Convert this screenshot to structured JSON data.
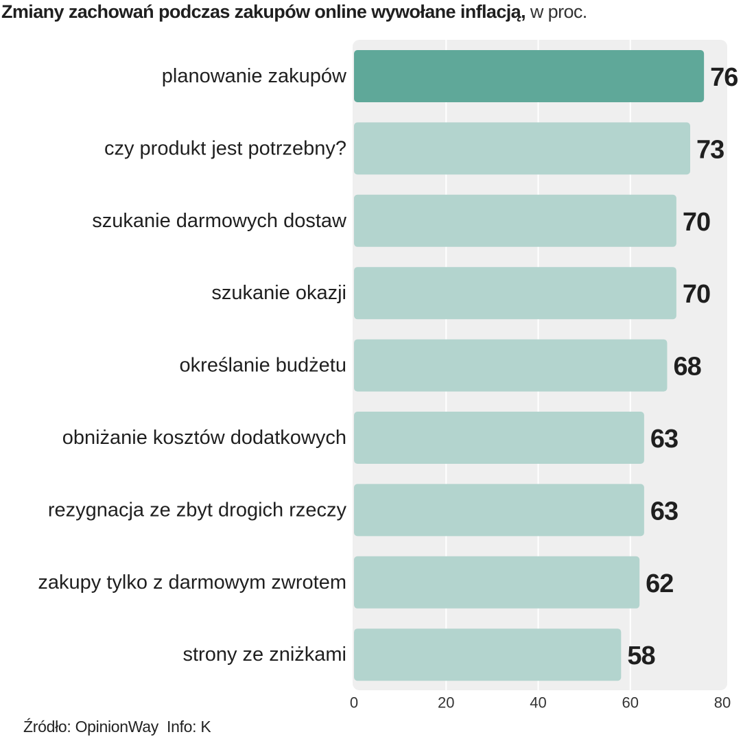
{
  "header": {
    "title_bold": "Zmiany zachowań podczas zakupów online wywołane inflacją,",
    "title_unit": " w proc."
  },
  "footer": {
    "source": "Źródło: OpinionWay",
    "info": "Info: K"
  },
  "colors": {
    "highlight_bar": "#5fa899",
    "bar": "#b3d4ce",
    "plot_background": "#efefef",
    "grid": "#ffffff"
  },
  "chart_data": {
    "type": "bar",
    "orientation": "horizontal",
    "title": "Zmiany zachowań podczas zakupów online wywołane inflacją, w proc.",
    "categories": [
      "planowanie zakupów",
      "czy produkt jest potrzebny?",
      "szukanie darmowych dostaw",
      "szukanie okazji",
      "określanie budżetu",
      "obniżanie kosztów dodatkowych",
      "rezygnacja ze zbyt drogich rzeczy",
      "zakupy tylko z darmowym zwrotem",
      "strony ze zniżkami"
    ],
    "values": [
      76,
      73,
      70,
      70,
      68,
      63,
      63,
      62,
      58
    ],
    "highlight_index": 0,
    "xlim": [
      0,
      80
    ],
    "xticks": [
      0,
      20,
      40,
      60,
      80
    ],
    "xlabel": "",
    "ylabel": "",
    "grid": true,
    "data_labels": true
  }
}
